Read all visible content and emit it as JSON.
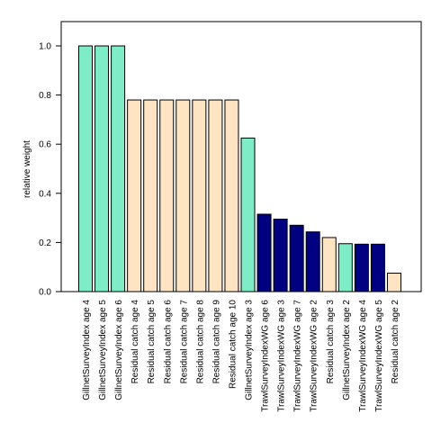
{
  "chart_data": {
    "type": "bar",
    "title": "",
    "xlabel": "",
    "ylabel": "relative weight",
    "ylim": [
      0,
      1.1
    ],
    "yticks": [
      "0.0",
      "0.2",
      "0.4",
      "0.6",
      "0.8",
      "1.0"
    ],
    "grid": false,
    "legend": "none",
    "colors": {
      "Gillnet": "#7fecc8",
      "Residual": "#ffe4c4",
      "Trawl": "#000080",
      "border": "#000000"
    },
    "categories": [
      "GillnetSurveyIndex age 4",
      "GillnetSurveyIndex age 5",
      "GillnetSurveyIndex age 6",
      "Residual catch age 4",
      "Residual catch age 5",
      "Residual catch age 6",
      "Residual catch age 7",
      "Residual catch age 8",
      "Residual catch age 9",
      "Residual catch age 10",
      "GillnetSurveyIndex age 3",
      "TrawlSurveyIndexWG age 6",
      "TrawlSurveyIndexWG age 3",
      "TrawlSurveyIndexWG age 7",
      "TrawlSurveyIndexWG age 2",
      "Residual catch age 3",
      "GillnetSurveyIndex age 2",
      "TrawlSurveyIndexWG age 4",
      "TrawlSurveyIndexWG age 5",
      "Residual catch age 2"
    ],
    "values": [
      1.0,
      1.0,
      1.0,
      0.78,
      0.78,
      0.78,
      0.78,
      0.78,
      0.78,
      0.78,
      0.625,
      0.315,
      0.295,
      0.27,
      0.243,
      0.22,
      0.195,
      0.193,
      0.193,
      0.075
    ],
    "groups": [
      "Gillnet",
      "Gillnet",
      "Gillnet",
      "Residual",
      "Residual",
      "Residual",
      "Residual",
      "Residual",
      "Residual",
      "Residual",
      "Gillnet",
      "Trawl",
      "Trawl",
      "Trawl",
      "Trawl",
      "Residual",
      "Gillnet",
      "Trawl",
      "Trawl",
      "Residual"
    ]
  }
}
